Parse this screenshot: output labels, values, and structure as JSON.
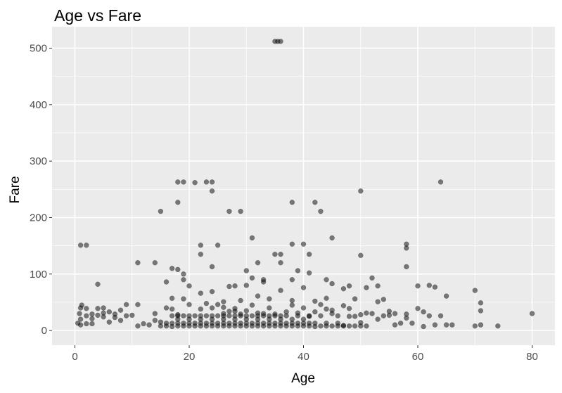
{
  "chart_data": {
    "type": "scatter",
    "title": "Age vs Fare",
    "xlabel": "Age",
    "ylabel": "Fare",
    "xlim": [
      -4,
      84
    ],
    "ylim": [
      -26,
      538
    ],
    "x_ticks": [
      0,
      20,
      40,
      60,
      80
    ],
    "y_ticks": [
      0,
      100,
      200,
      300,
      400,
      500
    ],
    "grid": true,
    "legend": "none",
    "colors": {
      "panel": "#ebebeb",
      "grid": "#ffffff",
      "point": "#000000",
      "tick_text": "#4d4d4d"
    },
    "points": [
      [
        35,
        512
      ],
      [
        36,
        512
      ],
      [
        35.5,
        512
      ],
      [
        18,
        263
      ],
      [
        19,
        263
      ],
      [
        23,
        263
      ],
      [
        24,
        263
      ],
      [
        64,
        263
      ],
      [
        21,
        262
      ],
      [
        24,
        247
      ],
      [
        50,
        247
      ],
      [
        18,
        227
      ],
      [
        38,
        227
      ],
      [
        42,
        227
      ],
      [
        15,
        211
      ],
      [
        27,
        211
      ],
      [
        29,
        211
      ],
      [
        43,
        211
      ],
      [
        31,
        164
      ],
      [
        45,
        164
      ],
      [
        1,
        151
      ],
      [
        2,
        151
      ],
      [
        22,
        151
      ],
      [
        25,
        151
      ],
      [
        58,
        153
      ],
      [
        38,
        153
      ],
      [
        40,
        153
      ],
      [
        58,
        146
      ],
      [
        22,
        135
      ],
      [
        35,
        135
      ],
      [
        36,
        135
      ],
      [
        41,
        135
      ],
      [
        50,
        133
      ],
      [
        32,
        120
      ],
      [
        36,
        120
      ],
      [
        11,
        120
      ],
      [
        14,
        120
      ],
      [
        17,
        110
      ],
      [
        18,
        108
      ],
      [
        24,
        113
      ],
      [
        58,
        113
      ],
      [
        30,
        106
      ],
      [
        39,
        106
      ],
      [
        19,
        100
      ],
      [
        41,
        102
      ],
      [
        31,
        93
      ],
      [
        52,
        93
      ],
      [
        19,
        90
      ],
      [
        33,
        90
      ],
      [
        38,
        90
      ],
      [
        44,
        90
      ],
      [
        16,
        86
      ],
      [
        20,
        79
      ],
      [
        28,
        79
      ],
      [
        33,
        86
      ],
      [
        45,
        83
      ],
      [
        48,
        79
      ],
      [
        53,
        79
      ],
      [
        60,
        79
      ],
      [
        62,
        80
      ],
      [
        63,
        77
      ],
      [
        4,
        82
      ],
      [
        30,
        80
      ],
      [
        27,
        78
      ],
      [
        22,
        66
      ],
      [
        24,
        69
      ],
      [
        36,
        71
      ],
      [
        40,
        76
      ],
      [
        47,
        74
      ],
      [
        51,
        76
      ],
      [
        65,
        61
      ],
      [
        70,
        71
      ],
      [
        71,
        49
      ],
      [
        32,
        61
      ],
      [
        44,
        57
      ],
      [
        29,
        53
      ],
      [
        34,
        56
      ],
      [
        49,
        56
      ],
      [
        54,
        55
      ],
      [
        17,
        57
      ],
      [
        19,
        56
      ],
      [
        26,
        51
      ],
      [
        38,
        53
      ],
      [
        42,
        52
      ],
      [
        53,
        51
      ],
      [
        1,
        40
      ],
      [
        2,
        39
      ],
      [
        3,
        29
      ],
      [
        4,
        39
      ],
      [
        5,
        31
      ],
      [
        6,
        33
      ],
      [
        7,
        29
      ],
      [
        8,
        36
      ],
      [
        9,
        46
      ],
      [
        10,
        27
      ],
      [
        11,
        46
      ],
      [
        2,
        26
      ],
      [
        3,
        21
      ],
      [
        4,
        27
      ],
      [
        5,
        24
      ],
      [
        6,
        15
      ],
      [
        7,
        23
      ],
      [
        9,
        26
      ],
      [
        1,
        10
      ],
      [
        2,
        12
      ],
      [
        0.5,
        13
      ],
      [
        1,
        20
      ],
      [
        3,
        12
      ],
      [
        8,
        18
      ],
      [
        0.8,
        30
      ],
      [
        1.2,
        45
      ],
      [
        5,
        40
      ],
      [
        14,
        30
      ],
      [
        16,
        40
      ],
      [
        17,
        38
      ],
      [
        18,
        28
      ],
      [
        20,
        46
      ],
      [
        22,
        38
      ],
      [
        23,
        48
      ],
      [
        25,
        46
      ],
      [
        26,
        41
      ],
      [
        27,
        34
      ],
      [
        28,
        39
      ],
      [
        29,
        29
      ],
      [
        30,
        26
      ],
      [
        31,
        45
      ],
      [
        32,
        31
      ],
      [
        33,
        30
      ],
      [
        34,
        26
      ],
      [
        35,
        29
      ],
      [
        36,
        26
      ],
      [
        37,
        33
      ],
      [
        38,
        45
      ],
      [
        39,
        31
      ],
      [
        40,
        40
      ],
      [
        41,
        25
      ],
      [
        42,
        33
      ],
      [
        43,
        46
      ],
      [
        44,
        38
      ],
      [
        45,
        36
      ],
      [
        46,
        26
      ],
      [
        47,
        44
      ],
      [
        48,
        39
      ],
      [
        49,
        25
      ],
      [
        50,
        28
      ],
      [
        51,
        31
      ],
      [
        52,
        30
      ],
      [
        54,
        26
      ],
      [
        55,
        34
      ],
      [
        56,
        30
      ],
      [
        57,
        13
      ],
      [
        58,
        29
      ],
      [
        60,
        39
      ],
      [
        61,
        33
      ],
      [
        62,
        26
      ],
      [
        63,
        10
      ],
      [
        65,
        10
      ],
      [
        66,
        10
      ],
      [
        71,
        35
      ],
      [
        80,
        30
      ],
      [
        70,
        8
      ],
      [
        74,
        8
      ],
      [
        71,
        10
      ],
      [
        24,
        40
      ],
      [
        26,
        30
      ],
      [
        28,
        34
      ],
      [
        30,
        35
      ],
      [
        34,
        40
      ],
      [
        40,
        20
      ],
      [
        45,
        30
      ],
      [
        55,
        27
      ],
      [
        59,
        13
      ],
      [
        61,
        7
      ],
      [
        64,
        26
      ],
      [
        47,
        9
      ],
      [
        48,
        25
      ],
      [
        50,
        14
      ],
      [
        53,
        20
      ],
      [
        56,
        10
      ],
      [
        58,
        22
      ],
      [
        15,
        8
      ],
      [
        16,
        8
      ],
      [
        17,
        7
      ],
      [
        18,
        8
      ],
      [
        19,
        8
      ],
      [
        20,
        8
      ],
      [
        21,
        8
      ],
      [
        22,
        8
      ],
      [
        23,
        8
      ],
      [
        24,
        8
      ],
      [
        25,
        8
      ],
      [
        26,
        8
      ],
      [
        27,
        8
      ],
      [
        28,
        8
      ],
      [
        29,
        8
      ],
      [
        30,
        8
      ],
      [
        31,
        8
      ],
      [
        32,
        8
      ],
      [
        33,
        8
      ],
      [
        34,
        8
      ],
      [
        35,
        8
      ],
      [
        36,
        8
      ],
      [
        37,
        8
      ],
      [
        38,
        8
      ],
      [
        39,
        8
      ],
      [
        40,
        8
      ],
      [
        41,
        8
      ],
      [
        42,
        7
      ],
      [
        43,
        8
      ],
      [
        44,
        8
      ],
      [
        45,
        8
      ],
      [
        46,
        8
      ],
      [
        47,
        8
      ],
      [
        48,
        8
      ],
      [
        49,
        8
      ],
      [
        50,
        8
      ],
      [
        51,
        8
      ],
      [
        16,
        13
      ],
      [
        17,
        13
      ],
      [
        18,
        13
      ],
      [
        19,
        13
      ],
      [
        20,
        13
      ],
      [
        21,
        13
      ],
      [
        22,
        13
      ],
      [
        23,
        13
      ],
      [
        24,
        13
      ],
      [
        25,
        13
      ],
      [
        26,
        13
      ],
      [
        27,
        13
      ],
      [
        28,
        13
      ],
      [
        29,
        13
      ],
      [
        30,
        13
      ],
      [
        31,
        13
      ],
      [
        32,
        13
      ],
      [
        33,
        13
      ],
      [
        34,
        13
      ],
      [
        35,
        13
      ],
      [
        36,
        13
      ],
      [
        37,
        13
      ],
      [
        38,
        13
      ],
      [
        39,
        13
      ],
      [
        40,
        13
      ],
      [
        41,
        13
      ],
      [
        42,
        13
      ],
      [
        44,
        13
      ],
      [
        46,
        13
      ],
      [
        17,
        26
      ],
      [
        18,
        26
      ],
      [
        19,
        26
      ],
      [
        20,
        26
      ],
      [
        21,
        26
      ],
      [
        22,
        26
      ],
      [
        23,
        26
      ],
      [
        24,
        26
      ],
      [
        25,
        26
      ],
      [
        26,
        26
      ],
      [
        27,
        26
      ],
      [
        28,
        26
      ],
      [
        29,
        26
      ],
      [
        31,
        26
      ],
      [
        32,
        26
      ],
      [
        33,
        26
      ],
      [
        35,
        26
      ],
      [
        37,
        26
      ],
      [
        39,
        26
      ],
      [
        41,
        26
      ],
      [
        43,
        26
      ],
      [
        18,
        20
      ],
      [
        20,
        20
      ],
      [
        22,
        20
      ],
      [
        24,
        20
      ],
      [
        26,
        20
      ],
      [
        28,
        20
      ],
      [
        30,
        20
      ],
      [
        32,
        20
      ],
      [
        34,
        20
      ],
      [
        36,
        20
      ],
      [
        38,
        20
      ],
      [
        15,
        15
      ],
      [
        12,
        12
      ],
      [
        13,
        10
      ],
      [
        11,
        8
      ],
      [
        14,
        18
      ]
    ]
  }
}
